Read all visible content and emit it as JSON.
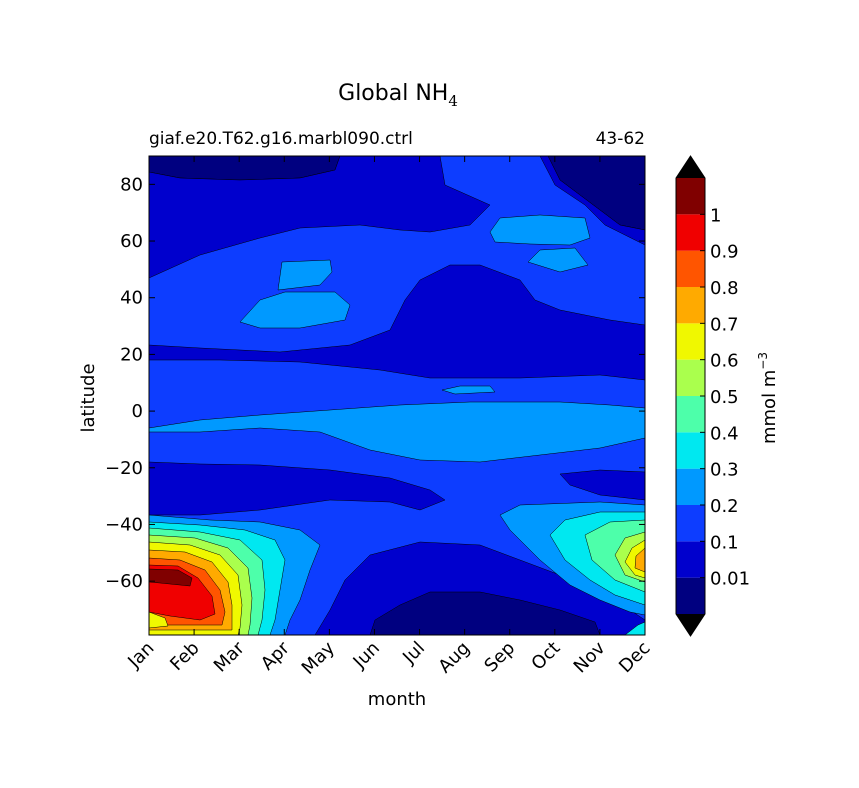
{
  "chart_data": {
    "type": "heatmap",
    "title_main": "Global NH",
    "title_subscript": "4",
    "subtitle_left": "giaf.e20.T62.g16.marbl090.ctrl",
    "subtitle_right": "43-62",
    "xlabel": "month",
    "ylabel": "latitude",
    "x_tick_labels": [
      "Jan",
      "Feb",
      "Mar",
      "Apr",
      "May",
      "Jun",
      "Jul",
      "Aug",
      "Sep",
      "Oct",
      "Nov",
      "Dec"
    ],
    "y_ticks": [
      80,
      60,
      40,
      20,
      0,
      -20,
      -40,
      -60
    ],
    "y_tick_labels": [
      "80",
      "60",
      "40",
      "20",
      "0",
      "−20",
      "−40",
      "−60"
    ],
    "ylim": [
      -79,
      90
    ],
    "colorbar": {
      "label_main": "mmol m",
      "label_exponent": "−3",
      "levels": [
        0,
        0.01,
        0.1,
        0.2,
        0.3,
        0.4,
        0.5,
        0.6,
        0.7,
        0.8,
        0.9,
        1.0,
        1.1
      ],
      "tick_labels": [
        "0.01",
        "0.1",
        "0.2",
        "0.3",
        "0.4",
        "0.5",
        "0.6",
        "0.7",
        "0.8",
        "0.9",
        "1"
      ],
      "colors": [
        "#000080",
        "#0000cd",
        "#0d3dff",
        "#0099ff",
        "#00e8f0",
        "#4dffaa",
        "#aaff4d",
        "#f0f800",
        "#ffaa00",
        "#ff5500",
        "#f00000",
        "#800000"
      ],
      "extend_colors": {
        "under": "#000000",
        "over": "#000000"
      },
      "extend": "both"
    },
    "description_regions": [
      {
        "months": "Jan-Feb",
        "lat_range": [
          -70,
          -55
        ],
        "value_range": "0.9-1.1"
      },
      {
        "months": "Jul-Sep",
        "lat_range": [
          -79,
          -65
        ],
        "value_range": "0-0.01"
      },
      {
        "months": "Jan-Jun",
        "lat_range": [
          80,
          90
        ],
        "value_range": "0-0.01"
      },
      {
        "months": "Nov-Dec",
        "lat_range": [
          -70,
          -45
        ],
        "value_range": "0.3-0.7"
      }
    ]
  }
}
